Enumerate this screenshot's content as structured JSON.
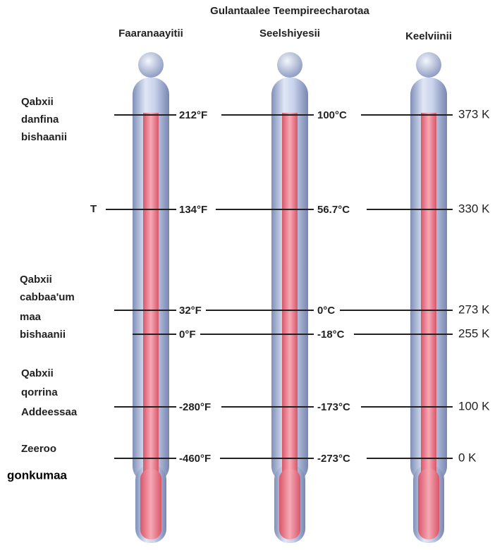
{
  "header": {
    "title": "Gulantaalee Teempireecharotaa"
  },
  "scales": [
    {
      "name": "Faaranaayitii",
      "readings": [
        "212°F",
        "134°F",
        "32°F",
        "0°F",
        "-280°F",
        "-460°F"
      ]
    },
    {
      "name": "Seelshiyesii",
      "readings": [
        "100°C",
        "56.7°C",
        "0°C",
        "-18°C",
        "-173°C",
        "-273°C"
      ]
    },
    {
      "name": "Keelviinii",
      "readings": [
        "373 K",
        "330 K",
        "273 K",
        "255 K",
        "100 K",
        "0 K"
      ]
    }
  ],
  "points": [
    {
      "label": [
        "Qabxii",
        "danfina",
        "bishaanii"
      ]
    },
    {
      "label": [
        "T"
      ]
    },
    {
      "label": [
        "Qabxii",
        "cabbaa'um",
        "maa",
        "bishaanii"
      ]
    },
    {
      "label": []
    },
    {
      "label": [
        "Qabxii",
        "qorrina",
        "Addeessaa"
      ]
    },
    {
      "label": [
        "Zeeroo",
        "gonkumaa"
      ]
    }
  ]
}
